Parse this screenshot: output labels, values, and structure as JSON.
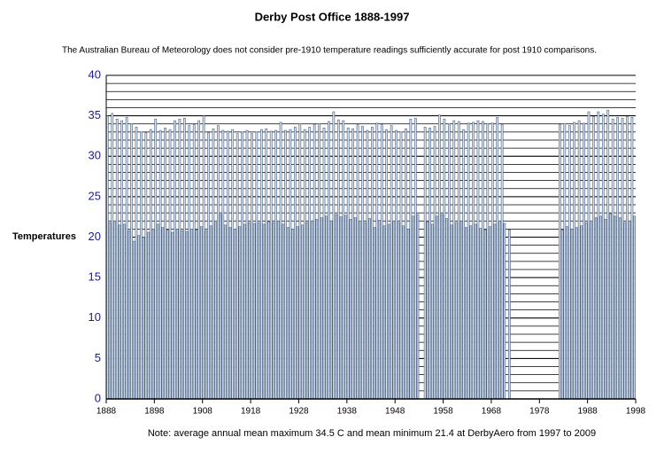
{
  "chart_data": {
    "type": "bar",
    "title": "Derby Post Office 1888-1997",
    "subtitle": "The Australian Bureau of Meteorology does not consider pre-1910 temperature readings sufficiently accurate for post 1910 comparisons.",
    "y_label": "Temperatures",
    "note": "Note: average annual mean maximum 34.5 C and mean minimum 21.4 at DerbyAero from 1997 to 2009",
    "x": [
      1888,
      1889,
      1890,
      1891,
      1892,
      1893,
      1894,
      1895,
      1896,
      1897,
      1898,
      1899,
      1900,
      1901,
      1902,
      1903,
      1904,
      1905,
      1906,
      1907,
      1908,
      1909,
      1910,
      1911,
      1912,
      1913,
      1914,
      1915,
      1916,
      1917,
      1918,
      1919,
      1920,
      1921,
      1922,
      1923,
      1924,
      1925,
      1926,
      1927,
      1928,
      1929,
      1930,
      1931,
      1932,
      1933,
      1934,
      1935,
      1936,
      1937,
      1938,
      1939,
      1940,
      1941,
      1942,
      1943,
      1944,
      1945,
      1946,
      1947,
      1948,
      1949,
      1950,
      1951,
      1952,
      1953,
      1954,
      1955,
      1956,
      1957,
      1958,
      1959,
      1960,
      1961,
      1962,
      1963,
      1964,
      1965,
      1966,
      1967,
      1968,
      1969,
      1970,
      1971,
      1972,
      1973,
      1974,
      1975,
      1976,
      1977,
      1978,
      1979,
      1980,
      1981,
      1982,
      1983,
      1984,
      1985,
      1986,
      1987,
      1988,
      1989,
      1990,
      1991,
      1992,
      1993,
      1994,
      1995,
      1996,
      1997
    ],
    "series": [
      {
        "color": "#d8e2ee",
        "values": [
          35.0,
          35.3,
          34.6,
          34.4,
          34.8,
          34.0,
          33.6,
          33.0,
          32.9,
          33.3,
          34.6,
          33.2,
          33.5,
          33.3,
          34.4,
          34.6,
          34.7,
          33.8,
          33.9,
          34.4,
          35.0,
          32.9,
          33.4,
          33.8,
          33.2,
          33.1,
          33.3,
          32.8,
          33.0,
          33.2,
          32.8,
          33.0,
          33.3,
          33.4,
          33.1,
          33.2,
          34.2,
          33.2,
          33.3,
          33.6,
          34.0,
          33.3,
          33.6,
          33.9,
          34.0,
          33.5,
          34.3,
          35.5,
          34.5,
          34.4,
          33.5,
          33.4,
          33.9,
          33.7,
          33.2,
          33.6,
          34.1,
          33.9,
          33.3,
          33.8,
          33.2,
          33.0,
          33.4,
          34.6,
          34.7,
          null,
          33.6,
          33.5,
          33.7,
          35.1,
          34.6,
          34.0,
          34.4,
          34.3,
          33.3,
          34.1,
          34.2,
          34.4,
          34.3,
          34.0,
          34.1,
          34.8,
          33.9,
          null,
          null,
          null,
          null,
          null,
          null,
          null,
          null,
          null,
          null,
          null,
          33.9,
          34.0,
          33.8,
          34.2,
          34.4,
          34.1,
          35.5,
          34.9,
          35.5,
          35.2,
          35.7,
          34.6,
          34.8,
          34.7,
          34.9,
          34.8
        ]
      },
      {
        "color": "#c6d3e3",
        "values": [
          21.8,
          22.0,
          21.5,
          21.6,
          20.8,
          19.5,
          20.2,
          20.0,
          20.6,
          21.0,
          21.6,
          21.2,
          20.9,
          20.6,
          21.0,
          20.8,
          20.7,
          21.0,
          20.9,
          21.3,
          20.8,
          21.4,
          22.0,
          22.8,
          21.5,
          21.2,
          21.0,
          21.3,
          21.6,
          21.8,
          21.7,
          21.8,
          21.6,
          21.9,
          21.8,
          22.0,
          21.6,
          21.2,
          21.0,
          21.3,
          21.5,
          21.8,
          22.0,
          22.2,
          22.4,
          22.6,
          22.0,
          22.8,
          22.5,
          22.7,
          22.2,
          22.4,
          22.0,
          21.8,
          22.3,
          21.2,
          22.1,
          21.4,
          21.6,
          22.0,
          21.8,
          21.4,
          21.0,
          22.6,
          22.8,
          null,
          21.9,
          21.6,
          22.6,
          22.8,
          22.3,
          21.5,
          21.8,
          22.0,
          21.2,
          21.4,
          21.6,
          21.1,
          20.9,
          21.3,
          21.6,
          22.0,
          21.7,
          20.9,
          null,
          null,
          null,
          null,
          null,
          null,
          null,
          null,
          null,
          null,
          20.9,
          21.3,
          21.0,
          21.2,
          21.4,
          21.8,
          22.0,
          22.4,
          22.6,
          22.2,
          22.9,
          22.6,
          22.4,
          21.8,
          22.0,
          22.6
        ]
      }
    ],
    "bar_stroke": "#4a5f80",
    "xlim": [
      1888,
      1998
    ],
    "xticks": [
      1888,
      1898,
      1908,
      1918,
      1928,
      1938,
      1948,
      1958,
      1968,
      1978,
      1988,
      1998
    ],
    "ylim": [
      0,
      40
    ],
    "yticks": [
      0,
      5,
      10,
      15,
      20,
      25,
      30,
      35,
      40
    ],
    "minor_grid": 1,
    "grid": true
  }
}
